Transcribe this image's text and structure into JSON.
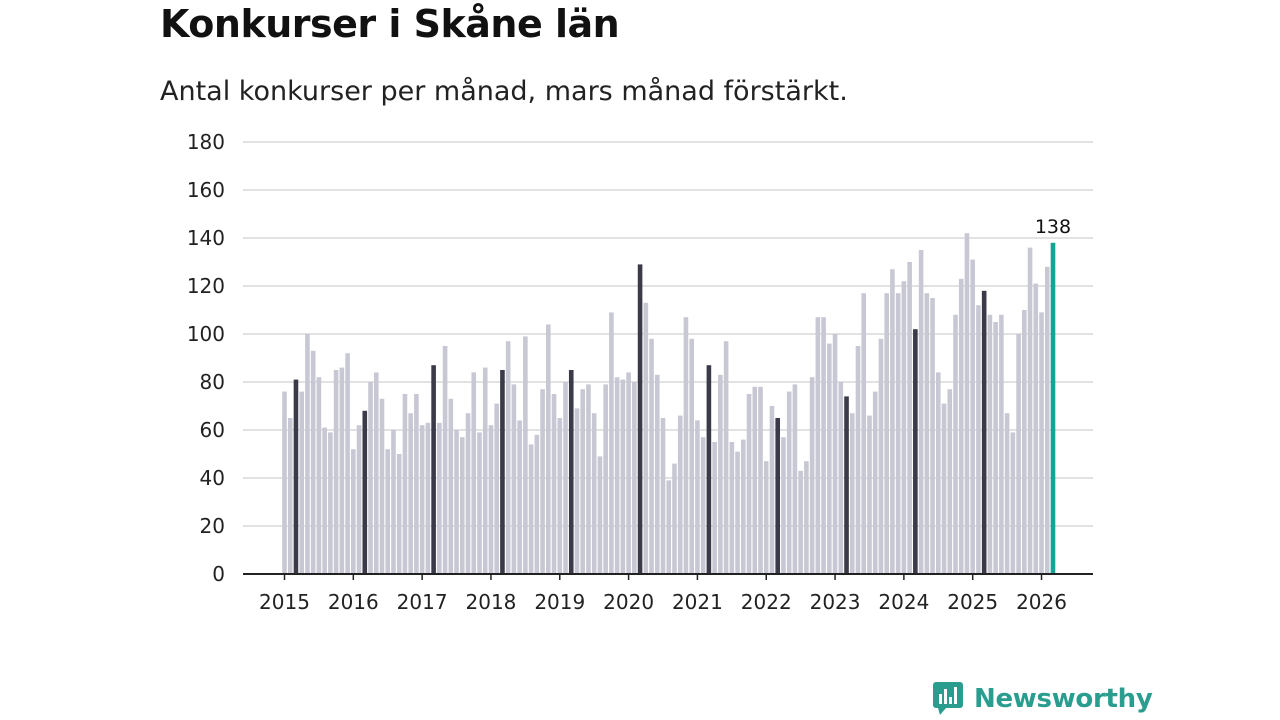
{
  "title": "Konkurser i Skåne län",
  "subtitle": "Antal konkurser per månad, mars månad förstärkt.",
  "brand": {
    "name": "Newsworthy",
    "icon": "newsworthy-logo-icon",
    "color": "#2a9d8f"
  },
  "colors": {
    "bar": "#c8c8d4",
    "highlight": "#3a3a48",
    "latest": "#14a394",
    "grid": "#d8d8d8",
    "axis": "#222222"
  },
  "chart_data": {
    "type": "bar",
    "title": "Konkurser i Skåne län",
    "subtitle": "Antal konkurser per månad, mars månad förstärkt.",
    "xlabel": "",
    "ylabel": "",
    "ylim": [
      0,
      180
    ],
    "yticks": [
      0,
      20,
      40,
      60,
      80,
      100,
      120,
      140,
      160,
      180
    ],
    "xticks": [
      "2015",
      "2016",
      "2017",
      "2018",
      "2019",
      "2020",
      "2021",
      "2022",
      "2023",
      "2024",
      "2025",
      "2026"
    ],
    "start": "2015-01",
    "grid": true,
    "highlight_month": "mars",
    "values": [
      76,
      65,
      81,
      76,
      100,
      93,
      82,
      61,
      59,
      85,
      86,
      92,
      52,
      62,
      68,
      80,
      84,
      73,
      52,
      60,
      50,
      75,
      67,
      75,
      62,
      63,
      87,
      63,
      95,
      73,
      60,
      57,
      67,
      84,
      59,
      86,
      62,
      71,
      85,
      97,
      79,
      64,
      99,
      54,
      58,
      77,
      104,
      75,
      65,
      80,
      85,
      69,
      77,
      79,
      67,
      49,
      79,
      109,
      82,
      81,
      84,
      80,
      129,
      113,
      98,
      83,
      65,
      39,
      46,
      66,
      107,
      98,
      64,
      57,
      87,
      55,
      83,
      97,
      55,
      51,
      56,
      75,
      78,
      78,
      47,
      70,
      65,
      57,
      76,
      79,
      43,
      47,
      82,
      107,
      107,
      96,
      100,
      80,
      74,
      67,
      95,
      117,
      66,
      76,
      98,
      117,
      127,
      117,
      122,
      130,
      102,
      135,
      117,
      115,
      84,
      71,
      77,
      108,
      123,
      142,
      131,
      112,
      118,
      108,
      105,
      108,
      67,
      59,
      100,
      110,
      136,
      121,
      109,
      128,
      138
    ],
    "annotation": {
      "label": "138",
      "value": 138,
      "period": "2026-03"
    }
  }
}
